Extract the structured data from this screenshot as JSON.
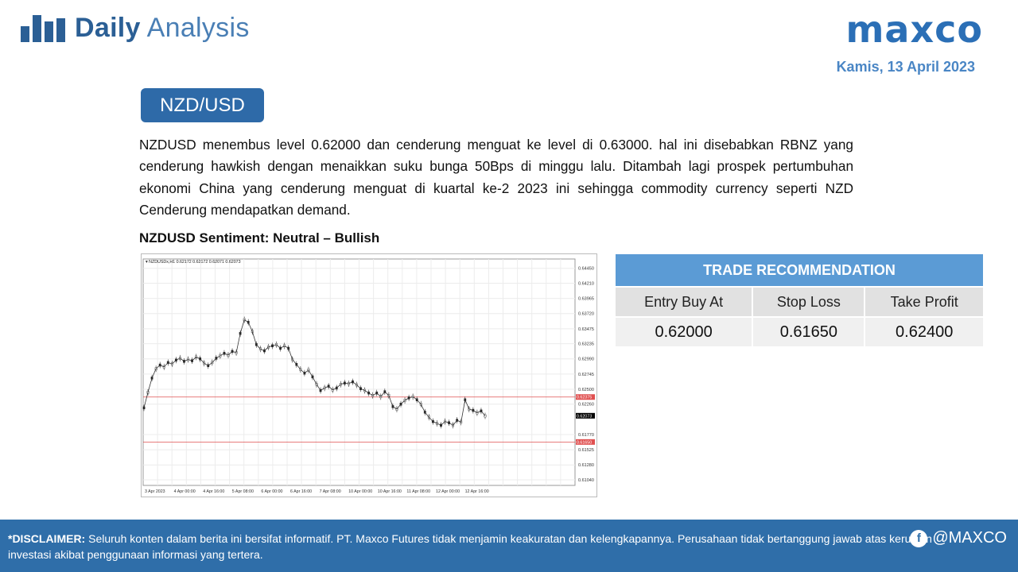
{
  "header": {
    "title_bold": "Daily",
    "title_light": " Analysis",
    "brand": "maxco",
    "date": "Kamis, 13 April 2023"
  },
  "pair": "NZD/USD",
  "paragraph": "NZDUSD menembus level 0.62000 dan cenderung menguat ke level di 0.63000. hal ini disebabkan RBNZ yang cenderung hawkish dengan menaikkan suku bunga 50Bps di minggu lalu. Ditambah lagi prospek pertumbuhan ekonomi China yang cenderung menguat di kuartal ke-2 2023 ini sehingga commodity currency seperti NZD Cenderung mendapatkan demand.",
  "sentiment": "NZDUSD Sentiment: Neutral – Bullish",
  "chart_data": {
    "type": "line",
    "title": "NZDUSDx,H1  0.62172 0.62172 0.62071 0.62073",
    "x_labels": [
      "3 Apr 2023",
      "4 Apr 00:00",
      "4 Apr 16:00",
      "5 Apr 08:00",
      "6 Apr 00:00",
      "6 Apr 16:00",
      "7 Apr 08:00",
      "10 Apr 00:00",
      "10 Apr 16:00",
      "11 Apr 08:00",
      "12 Apr 00:00",
      "12 Apr 16:00"
    ],
    "y_ticks": [
      0.6445,
      0.6421,
      0.63965,
      0.6372,
      0.63475,
      0.63235,
      0.6299,
      0.62745,
      0.625,
      0.6226,
      0.6177,
      0.61525,
      0.6128,
      0.6104
    ],
    "ylim": [
      0.6095,
      0.646
    ],
    "series": [
      {
        "values": [
          0.622,
          0.6245,
          0.6268,
          0.6283,
          0.6289,
          0.6286,
          0.6293,
          0.6291,
          0.6297,
          0.63,
          0.6295,
          0.6298,
          0.6296,
          0.6302,
          0.6299,
          0.6292,
          0.6288,
          0.6293,
          0.63,
          0.6304,
          0.6308,
          0.6305,
          0.6311,
          0.6309,
          0.634,
          0.6362,
          0.6358,
          0.6343,
          0.6322,
          0.6315,
          0.6312,
          0.6318,
          0.632,
          0.6322,
          0.6316,
          0.632,
          0.6316,
          0.6298,
          0.629,
          0.6282,
          0.6276,
          0.6281,
          0.627,
          0.6258,
          0.6248,
          0.6252,
          0.6255,
          0.6249,
          0.6252,
          0.6258,
          0.626,
          0.6259,
          0.6262,
          0.6257,
          0.6251,
          0.6248,
          0.6244,
          0.624,
          0.6244,
          0.6238,
          0.6246,
          0.624,
          0.6222,
          0.6218,
          0.6226,
          0.6232,
          0.6236,
          0.6238,
          0.6233,
          0.6226,
          0.6213,
          0.6205,
          0.6198,
          0.6195,
          0.6192,
          0.6198,
          0.6196,
          0.6192,
          0.62,
          0.6197,
          0.6233,
          0.6218,
          0.6216,
          0.6212,
          0.6215,
          0.6207
        ]
      }
    ],
    "levels": [
      {
        "value": 0.62375,
        "label": "0.62375",
        "color": "#e05050"
      },
      {
        "value": 0.6165,
        "label": "0.61650",
        "color": "#e05050"
      },
      {
        "value": 0.62073,
        "label": "0.62073",
        "color": "#000000"
      }
    ],
    "grid": true
  },
  "table": {
    "title": "TRADE RECOMMENDATION",
    "labels": [
      "Entry Buy At",
      "Stop Loss",
      "Take Profit"
    ],
    "values": [
      "0.62000",
      "0.61650",
      "0.62400"
    ]
  },
  "footer": {
    "disclaimer_label": "*DISCLAIMER:",
    "disclaimer_text": " Seluruh konten dalam berita ini bersifat informatif. PT. Maxco Futures tidak menjamin keakuratan dan kelengkapannya. Perusahaan tidak bertanggung jawab atas kerugian investasi akibat penggunaan informasi yang tertera.",
    "social_handle": "@MAXCO"
  },
  "colors": {
    "brand": "#2b6fb6",
    "footer": "#2f6ea9",
    "table_header": "#5b9bd5",
    "badge": "#2e6aa8"
  }
}
